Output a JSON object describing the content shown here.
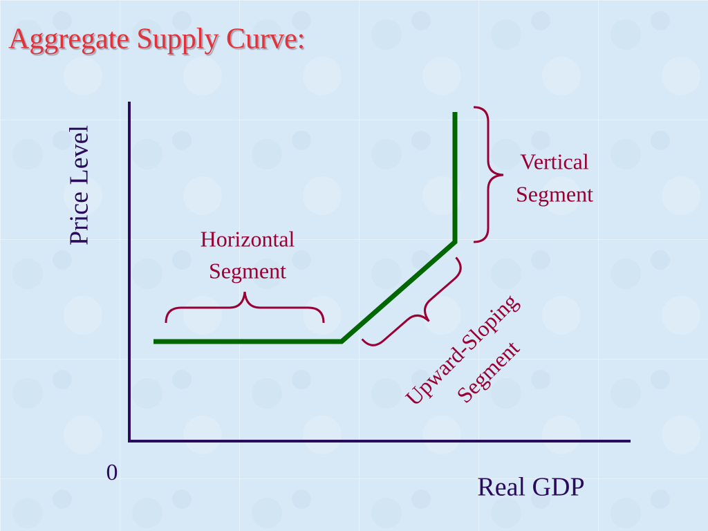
{
  "title": "Aggregate Supply Curve:",
  "y_axis_label": "Price Level",
  "x_axis_label": "Real GDP",
  "origin_label": "0",
  "labels": {
    "horizontal": [
      "Horizontal",
      "Segment"
    ],
    "vertical": [
      "Vertical",
      "Segment"
    ],
    "upward": [
      "Upward-Sloping",
      "Segment"
    ]
  }
}
